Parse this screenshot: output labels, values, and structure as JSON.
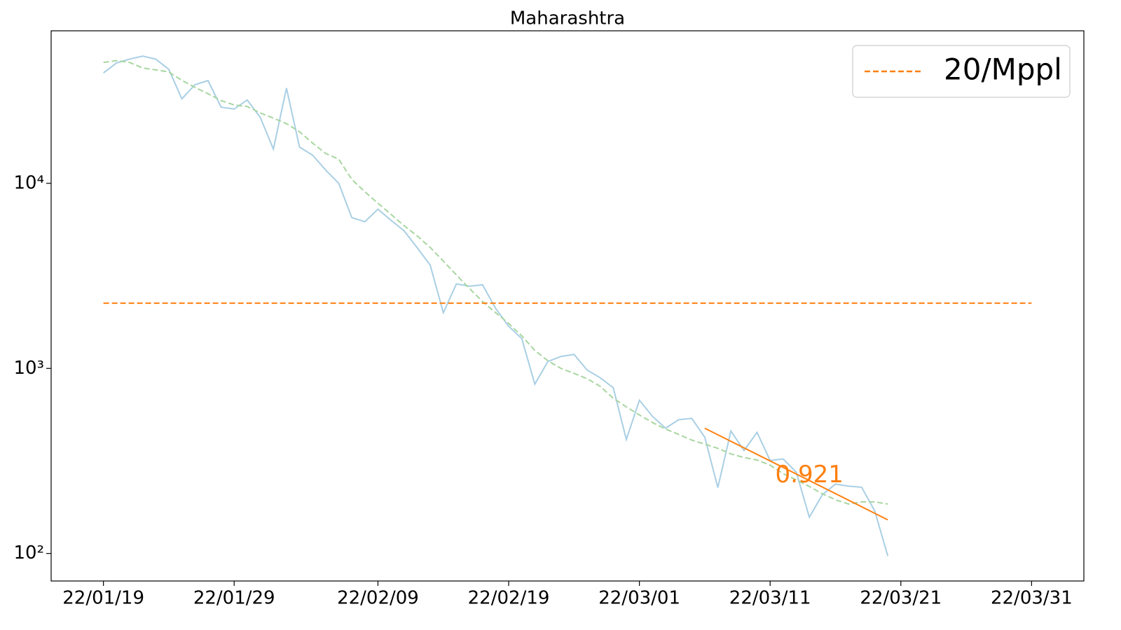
{
  "chart_data": {
    "type": "line",
    "title": "Maharashtra",
    "log_y": true,
    "legend_position": "upper right",
    "xlim": [
      "22/01/15",
      "22/04/04"
    ],
    "xticks": [
      "22/01/19",
      "22/01/29",
      "22/02/09",
      "22/02/19",
      "22/03/01",
      "22/03/11",
      "22/03/21",
      "22/03/31"
    ],
    "ylim": [
      71,
      66700
    ],
    "yticks": [
      {
        "value": 100,
        "label": "10²"
      },
      {
        "value": 1000,
        "label": "10³"
      },
      {
        "value": 10000,
        "label": "10⁴"
      }
    ],
    "series": [
      {
        "color": "#a9cfe4",
        "dashed": false,
        "x": [
          "22/01/19",
          "22/01/20",
          "22/01/21",
          "22/01/22",
          "22/01/23",
          "22/01/24",
          "22/01/25",
          "22/01/26",
          "22/01/27",
          "22/01/28",
          "22/01/29",
          "22/01/30",
          "22/01/31",
          "22/02/01",
          "22/02/02",
          "22/02/03",
          "22/02/04",
          "22/02/05",
          "22/02/06",
          "22/02/07",
          "22/02/08",
          "22/02/09",
          "22/02/10",
          "22/02/11",
          "22/02/12",
          "22/02/13",
          "22/02/14",
          "22/02/15",
          "22/02/16",
          "22/02/17",
          "22/02/18",
          "22/02/19",
          "22/02/20",
          "22/02/21",
          "22/02/22",
          "22/02/23",
          "22/02/24",
          "22/02/25",
          "22/02/26",
          "22/02/27",
          "22/02/28",
          "22/03/01",
          "22/03/02",
          "22/03/03",
          "22/03/04",
          "22/03/05",
          "22/03/06",
          "22/03/07",
          "22/03/08",
          "22/03/09",
          "22/03/10",
          "22/03/11",
          "22/03/12",
          "22/03/13",
          "22/03/14",
          "22/03/15",
          "22/03/16",
          "22/03/17",
          "22/03/18",
          "22/03/19",
          "22/03/20"
        ],
        "values": [
          39500,
          44700,
          46900,
          48700,
          46900,
          41300,
          28600,
          34100,
          35900,
          25800,
          25200,
          28200,
          22700,
          15300,
          32700,
          15700,
          14200,
          11800,
          10000,
          6530,
          6200,
          7250,
          6310,
          5540,
          4490,
          3610,
          2000,
          2860,
          2780,
          2830,
          2110,
          1690,
          1450,
          822,
          1090,
          1160,
          1190,
          980,
          890,
          787,
          413,
          673,
          551,
          475,
          528,
          537,
          425,
          227,
          459,
          360,
          451,
          318,
          324,
          275,
          157,
          208,
          237,
          231,
          228,
          170,
          97
        ]
      },
      {
        "color": "#a8d6a0",
        "dashed": true,
        "x": [
          "22/01/19",
          "22/01/20",
          "22/01/21",
          "22/01/22",
          "22/01/23",
          "22/01/24",
          "22/01/25",
          "22/01/26",
          "22/01/27",
          "22/01/28",
          "22/01/29",
          "22/01/30",
          "22/01/31",
          "22/02/01",
          "22/02/02",
          "22/02/03",
          "22/02/04",
          "22/02/05",
          "22/02/06",
          "22/02/07",
          "22/02/08",
          "22/02/09",
          "22/02/10",
          "22/02/11",
          "22/02/12",
          "22/02/13",
          "22/02/14",
          "22/02/15",
          "22/02/16",
          "22/02/17",
          "22/02/18",
          "22/02/19",
          "22/02/20",
          "22/02/21",
          "22/02/22",
          "22/02/23",
          "22/02/24",
          "22/02/25",
          "22/02/26",
          "22/02/27",
          "22/02/28",
          "22/03/01",
          "22/03/02",
          "22/03/03",
          "22/03/04",
          "22/03/05",
          "22/03/06",
          "22/03/07",
          "22/03/08",
          "22/03/09",
          "22/03/10",
          "22/03/11",
          "22/03/12",
          "22/03/13",
          "22/03/14",
          "22/03/15",
          "22/03/16",
          "22/03/17",
          "22/03/18",
          "22/03/19",
          "22/03/20"
        ],
        "values": [
          45000,
          46000,
          45000,
          42000,
          41000,
          40000,
          36000,
          33000,
          30500,
          28000,
          26500,
          26000,
          24000,
          22500,
          21000,
          19000,
          16500,
          14500,
          13500,
          10500,
          9000,
          7800,
          6800,
          5900,
          5200,
          4500,
          3800,
          3200,
          2700,
          2300,
          2000,
          1750,
          1500,
          1250,
          1100,
          1000,
          940,
          880,
          800,
          690,
          620,
          560,
          510,
          470,
          440,
          410,
          390,
          370,
          345,
          330,
          320,
          300,
          270,
          250,
          230,
          210,
          195,
          185,
          190,
          190,
          185
        ]
      },
      {
        "name": "20/Mppl",
        "color": "#ff7f0e",
        "dashed": true,
        "x": [
          "22/01/19",
          "22/03/31"
        ],
        "values": [
          2250,
          2250
        ]
      },
      {
        "color": "#ff7f0e",
        "dashed": false,
        "x": [
          "22/03/06",
          "22/03/20"
        ],
        "values": [
          475,
          152
        ]
      }
    ],
    "annotations": [
      {
        "text": "0.921",
        "x": "22/03/14",
        "y": 263,
        "color": "#ff7f0e"
      }
    ]
  }
}
